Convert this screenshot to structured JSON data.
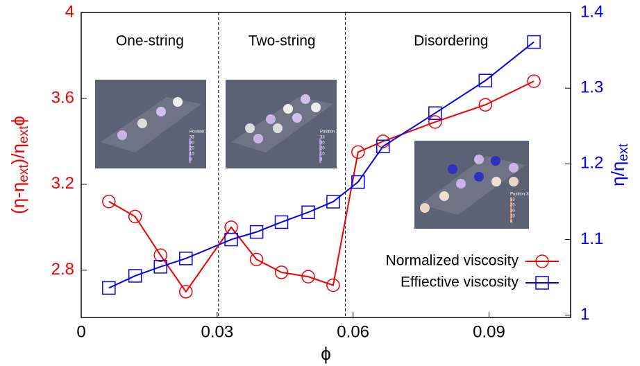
{
  "chart_data": {
    "type": "line",
    "x_label": "ϕ",
    "y_label_parts": [
      "(η-η",
      "ext",
      ")/η",
      "ext",
      "ϕ"
    ],
    "y2_label_parts": [
      "η/η",
      "ext"
    ],
    "xlim": [
      0,
      0.108
    ],
    "xticks": [
      0,
      0.03,
      0.06,
      0.09
    ],
    "ylim": [
      2.58,
      4
    ],
    "yticks": [
      2.8,
      3.2,
      3.6,
      4
    ],
    "y2lim": [
      0.997,
      1.4
    ],
    "y2ticks": [
      1,
      1.1,
      1.2,
      1.3,
      1.4
    ],
    "left_axis_color": "#ee0000",
    "right_axis_color": "#0000ee",
    "vlines": [
      0.0303,
      0.0583
    ],
    "regions": [
      "One-string",
      "Two-string",
      "Disordering"
    ],
    "inset_labels": {
      "title": "Position X",
      "ticks": [
        "33",
        "30",
        "20",
        "10",
        "8"
      ]
    },
    "legend": "bottom-right",
    "x": [
      0.0061,
      0.0119,
      0.0175,
      0.0231,
      0.0331,
      0.0387,
      0.0442,
      0.0501,
      0.0556,
      0.0611,
      0.0666,
      0.0781,
      0.0892,
      0.0999
    ],
    "series": [
      {
        "name": "Normalized viscosity",
        "color": "#ee0000",
        "marker": "circle",
        "values": [
          3.12,
          3.05,
          2.87,
          2.7,
          3.0,
          2.85,
          2.79,
          2.77,
          2.73,
          3.35,
          3.4,
          3.49,
          3.57,
          3.68
        ]
      },
      {
        "name": "Effiective viscosity",
        "color": "#0000ee",
        "marker": "square",
        "axis": "y2",
        "values": [
          1.036,
          1.052,
          1.064,
          1.075,
          1.1,
          1.11,
          1.123,
          1.136,
          1.15,
          1.176,
          1.223,
          1.267,
          1.31,
          1.361
        ]
      }
    ]
  }
}
